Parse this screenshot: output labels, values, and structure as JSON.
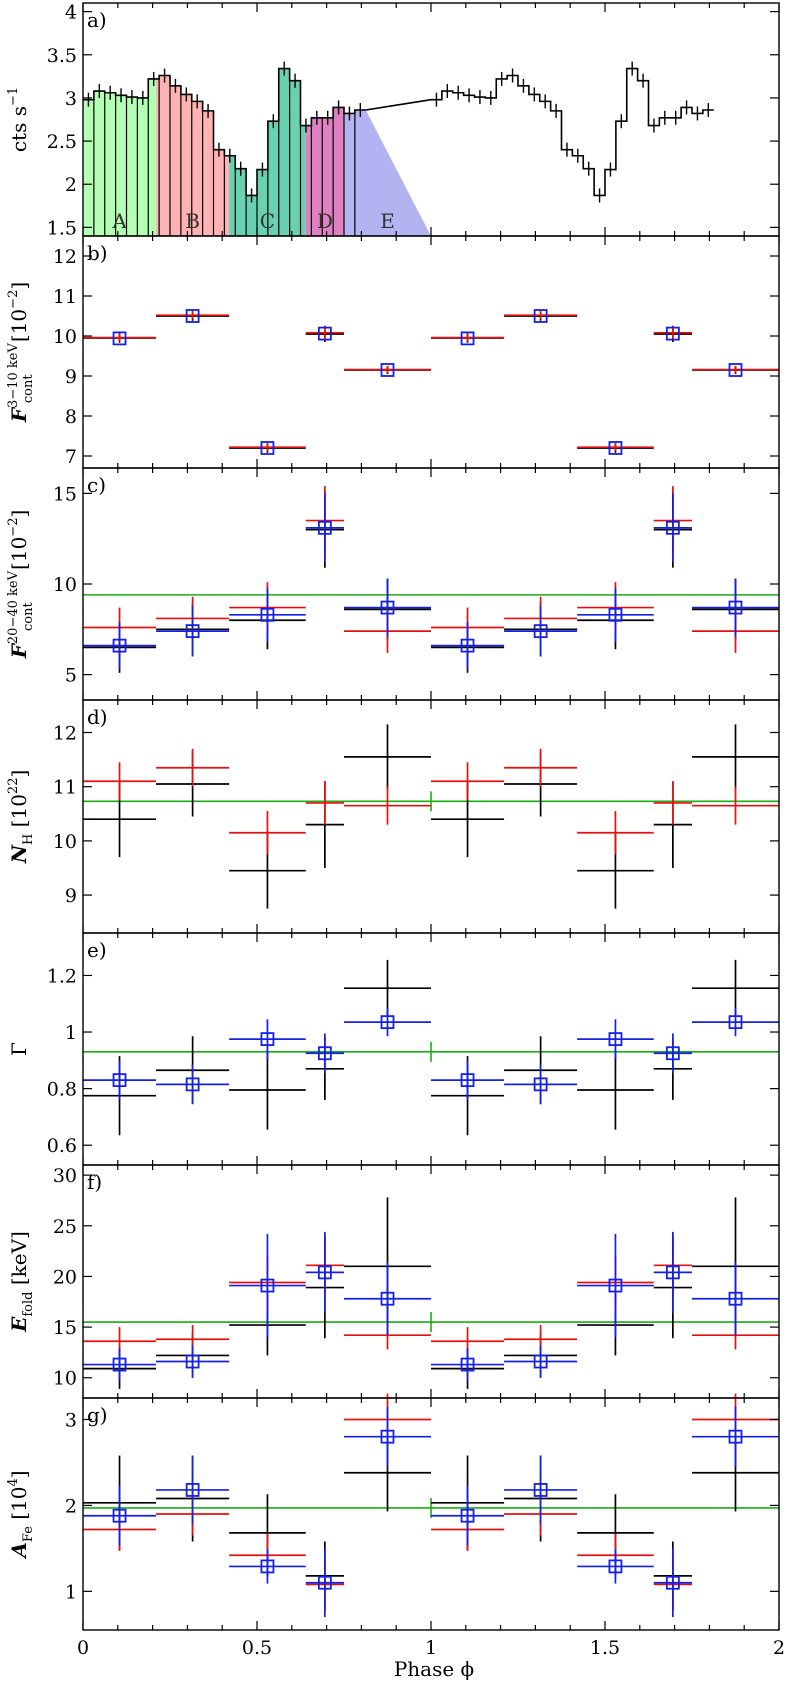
{
  "chart_data": {
    "type": "multi-panel",
    "x_axis": {
      "label": "Phase ϕ",
      "range": [
        0,
        2
      ],
      "ticks": [
        0,
        0.5,
        1,
        1.5,
        2
      ],
      "tick_labels": [
        "0",
        "0.5",
        "1",
        "1.5",
        "2"
      ]
    },
    "colors": {
      "black": "#000000",
      "red": "#e8100e",
      "blue": "#1420e6",
      "green": "#1aad12",
      "seg_A": "#b3ffb3",
      "seg_B": "#ffb3b3",
      "seg_C": "#69d1b1",
      "seg_D": "#df80c2",
      "seg_E": "#b3b3f2"
    },
    "segments": [
      {
        "label": "A",
        "x0": 0.0,
        "x1": 0.21,
        "color": "seg_A"
      },
      {
        "label": "B",
        "x0": 0.21,
        "x1": 0.42,
        "color": "seg_B"
      },
      {
        "label": "C",
        "x0": 0.42,
        "x1": 0.64,
        "color": "seg_C"
      },
      {
        "label": "D",
        "x0": 0.64,
        "x1": 0.75,
        "color": "seg_D"
      },
      {
        "label": "E",
        "x0": 0.75,
        "x1": 1.0,
        "color": "seg_E"
      }
    ],
    "panels": [
      {
        "id": "a",
        "label": "a)",
        "ylabel_main": "cts s",
        "ylabel_sup": "−1",
        "ylim": [
          1.4,
          4.1
        ],
        "yticks": [
          1.5,
          2,
          2.5,
          3,
          3.5,
          4
        ],
        "ytick_labels": [
          "1.5",
          "2",
          "2.5",
          "3",
          "3.5",
          "4"
        ],
        "lightcurve": {
          "bin_width": 0.03125,
          "values": [
            2.98,
            3.08,
            3.06,
            3.03,
            3.01,
            3.0,
            3.22,
            3.26,
            3.14,
            3.04,
            2.96,
            2.85,
            2.4,
            2.33,
            2.18,
            1.87,
            2.17,
            2.73,
            3.34,
            3.2,
            2.68,
            2.77,
            2.77,
            2.89,
            2.82,
            2.86
          ]
        }
      },
      {
        "id": "b",
        "label": "b)",
        "ylabel_main": "F",
        "ylabel_sup": "3−10 keV",
        "ylabel_sub": "cont",
        "ylabel_unit": "[10",
        "ylabel_unit_sup": "−2",
        "ylabel_unit_end": "]",
        "ylim": [
          6.7,
          12.5
        ],
        "yticks": [
          7,
          8,
          9,
          10,
          11,
          12
        ],
        "ytick_labels": [
          "7",
          "8",
          "9",
          "10",
          "11",
          "12"
        ],
        "series": [
          {
            "name": "",
            "color": "black",
            "marker": "none",
            "x": [
              0.105,
              0.315,
              0.53,
              0.695,
              0.875
            ],
            "xerr": [
              0.105,
              0.105,
              0.11,
              0.055,
              0.125
            ],
            "y": [
              9.95,
              10.5,
              7.2,
              10.05,
              9.15
            ],
            "yerr": [
              0.12,
              0.12,
              0.12,
              0.2,
              0.1
            ]
          },
          {
            "name": "",
            "color": "red",
            "marker": "none",
            "x": [
              0.105,
              0.315,
              0.53,
              0.695,
              0.875
            ],
            "xerr": [
              0.105,
              0.105,
              0.11,
              0.055,
              0.125
            ],
            "y": [
              9.96,
              10.52,
              7.22,
              10.08,
              9.16
            ],
            "yerr": [
              0.1,
              0.1,
              0.1,
              0.18,
              0.09
            ]
          },
          {
            "name": "",
            "color": "blue",
            "marker": "square",
            "x": [
              0.105,
              0.315,
              0.53,
              0.695,
              0.875
            ],
            "xerr": [
              0,
              0,
              0,
              0,
              0
            ],
            "y": [
              9.94,
              10.5,
              7.2,
              10.06,
              9.15
            ],
            "yerr": [
              0,
              0,
              0,
              0,
              0
            ]
          }
        ],
        "reference": null
      },
      {
        "id": "c",
        "label": "c)",
        "ylabel_main": "F",
        "ylabel_sup": "20−40 keV",
        "ylabel_sub": "cont",
        "ylabel_unit": "[10",
        "ylabel_unit_sup": "−2",
        "ylabel_unit_end": "]",
        "ylim": [
          3.6,
          16.4
        ],
        "yticks": [
          5,
          10,
          15
        ],
        "ytick_labels": [
          "5",
          "10",
          "15"
        ],
        "series": [
          {
            "name": "",
            "color": "black",
            "marker": "none",
            "x": [
              0.105,
              0.315,
              0.53,
              0.695,
              0.875
            ],
            "xerr": [
              0.105,
              0.105,
              0.11,
              0.055,
              0.125
            ],
            "y": [
              6.5,
              7.5,
              8.0,
              13.0,
              8.6
            ],
            "yerr": [
              1.4,
              1.5,
              1.6,
              2.1,
              1.7
            ]
          },
          {
            "name": "",
            "color": "red",
            "marker": "none",
            "x": [
              0.105,
              0.315,
              0.53,
              0.695,
              0.875
            ],
            "xerr": [
              0.105,
              0.105,
              0.11,
              0.055,
              0.125
            ],
            "y": [
              7.6,
              8.1,
              8.7,
              13.5,
              7.4
            ],
            "yerr": [
              1.1,
              1.2,
              1.4,
              1.9,
              1.2
            ]
          },
          {
            "name": "",
            "color": "blue",
            "marker": "square",
            "x": [
              0.105,
              0.315,
              0.53,
              0.695,
              0.875
            ],
            "xerr": [
              0.105,
              0.105,
              0.11,
              0.055,
              0.125
            ],
            "y": [
              6.6,
              7.4,
              8.3,
              13.1,
              8.7
            ],
            "yerr": [
              1.3,
              1.4,
              1.5,
              1.9,
              1.6
            ]
          }
        ],
        "reference": 9.4
      },
      {
        "id": "d",
        "label": "d)",
        "ylabel_main": "N",
        "ylabel_sub": "H",
        "ylabel_unit": "[10",
        "ylabel_unit_sup": "22",
        "ylabel_unit_end": "]",
        "ylim": [
          8.3,
          12.6
        ],
        "yticks": [
          9,
          10,
          11,
          12
        ],
        "ytick_labels": [
          "9",
          "10",
          "11",
          "12"
        ],
        "series": [
          {
            "name": "",
            "color": "black",
            "marker": "none",
            "x": [
              0.105,
              0.315,
              0.53,
              0.695,
              0.875
            ],
            "xerr": [
              0.105,
              0.105,
              0.11,
              0.055,
              0.125
            ],
            "y": [
              10.4,
              11.05,
              9.45,
              10.3,
              11.55
            ],
            "yerr": [
              0.7,
              0.6,
              0.7,
              0.8,
              0.6
            ]
          },
          {
            "name": "",
            "color": "red",
            "marker": "none",
            "x": [
              0.105,
              0.315,
              0.53,
              0.695,
              0.875
            ],
            "xerr": [
              0.105,
              0.105,
              0.11,
              0.055,
              0.125
            ],
            "y": [
              11.1,
              11.35,
              10.15,
              10.7,
              10.65
            ],
            "yerr": [
              0.35,
              0.35,
              0.4,
              0.4,
              0.35
            ]
          }
        ],
        "reference": 10.73
      },
      {
        "id": "e",
        "label": "e)",
        "ylabel_main": "Γ",
        "ylim": [
          0.53,
          1.35
        ],
        "yticks": [
          0.6,
          0.8,
          1,
          1.2
        ],
        "ytick_labels": [
          "0.6",
          "0.8",
          "1",
          "1.2"
        ],
        "series": [
          {
            "name": "",
            "color": "black",
            "marker": "none",
            "x": [
              0.105,
              0.315,
              0.53,
              0.695,
              0.875
            ],
            "xerr": [
              0.105,
              0.105,
              0.11,
              0.055,
              0.125
            ],
            "y": [
              0.775,
              0.865,
              0.795,
              0.87,
              1.155
            ],
            "yerr": [
              0.14,
              0.12,
              0.14,
              0.11,
              0.1
            ]
          },
          {
            "name": "",
            "color": "blue",
            "marker": "square",
            "x": [
              0.105,
              0.315,
              0.53,
              0.695,
              0.875
            ],
            "xerr": [
              0.105,
              0.105,
              0.11,
              0.055,
              0.125
            ],
            "y": [
              0.83,
              0.815,
              0.975,
              0.925,
              1.035
            ],
            "yerr": [
              0.07,
              0.07,
              0.07,
              0.07,
              0.05
            ]
          }
        ],
        "reference": 0.93
      },
      {
        "id": "f",
        "label": "f)",
        "ylabel_main": "E",
        "ylabel_sub": "fold",
        "ylabel_unit": "[keV]",
        "ylim": [
          8,
          31
        ],
        "yticks": [
          10,
          15,
          20,
          25,
          30
        ],
        "ytick_labels": [
          "10",
          "15",
          "20",
          "25",
          "30"
        ],
        "series": [
          {
            "name": "",
            "color": "black",
            "marker": "none",
            "x": [
              0.105,
              0.315,
              0.53,
              0.695,
              0.875
            ],
            "xerr": [
              0.105,
              0.105,
              0.11,
              0.055,
              0.125
            ],
            "y": [
              10.9,
              12.2,
              15.2,
              18.9,
              21.0
            ],
            "yerr": [
              2.0,
              2.2,
              3.0,
              5.0,
              6.8
            ]
          },
          {
            "name": "",
            "color": "red",
            "marker": "none",
            "x": [
              0.105,
              0.315,
              0.53,
              0.695,
              0.875
            ],
            "xerr": [
              0.105,
              0.105,
              0.11,
              0.055,
              0.125
            ],
            "y": [
              13.6,
              13.8,
              19.4,
              21.1,
              14.2
            ],
            "yerr": [
              1.4,
              1.4,
              2.6,
              3.0,
              1.4
            ]
          },
          {
            "name": "",
            "color": "blue",
            "marker": "square",
            "x": [
              0.105,
              0.315,
              0.53,
              0.695,
              0.875
            ],
            "xerr": [
              0.105,
              0.105,
              0.11,
              0.055,
              0.125
            ],
            "y": [
              11.3,
              11.6,
              19.1,
              20.4,
              17.8
            ],
            "yerr": [
              1.6,
              1.6,
              5.1,
              4.0,
              3.6
            ]
          }
        ],
        "reference": 15.5
      },
      {
        "id": "g",
        "label": "g)",
        "ylabel_main": "A",
        "ylabel_sub": "Fe",
        "ylabel_unit": "[10",
        "ylabel_unit_sup": "4",
        "ylabel_unit_end": "]",
        "ylim": [
          0.55,
          3.25
        ],
        "yticks": [
          1,
          2,
          3
        ],
        "ytick_labels": [
          "1",
          "2",
          "3"
        ],
        "series": [
          {
            "name": "",
            "color": "black",
            "marker": "none",
            "x": [
              0.105,
              0.315,
              0.53,
              0.695,
              0.875
            ],
            "xerr": [
              0.105,
              0.105,
              0.11,
              0.055,
              0.125
            ],
            "y": [
              2.03,
              2.08,
              1.68,
              1.18,
              2.38
            ],
            "yerr": [
              0.55,
              0.5,
              0.45,
              0.4,
              0.45
            ]
          },
          {
            "name": "",
            "color": "red",
            "marker": "none",
            "x": [
              0.105,
              0.315,
              0.53,
              0.695,
              0.875
            ],
            "xerr": [
              0.105,
              0.105,
              0.11,
              0.055,
              0.125
            ],
            "y": [
              1.72,
              1.9,
              1.42,
              1.08,
              3.0
            ],
            "yerr": [
              0.25,
              0.25,
              0.25,
              0.3,
              0.3
            ]
          },
          {
            "name": "",
            "color": "blue",
            "marker": "square",
            "x": [
              0.105,
              0.315,
              0.53,
              0.695,
              0.875
            ],
            "xerr": [
              0.105,
              0.105,
              0.11,
              0.055,
              0.125
            ],
            "y": [
              1.88,
              2.18,
              1.29,
              1.1,
              2.8
            ],
            "yerr": [
              0.35,
              0.4,
              0.2,
              0.4,
              0.35
            ]
          }
        ],
        "reference": 1.97
      }
    ]
  }
}
